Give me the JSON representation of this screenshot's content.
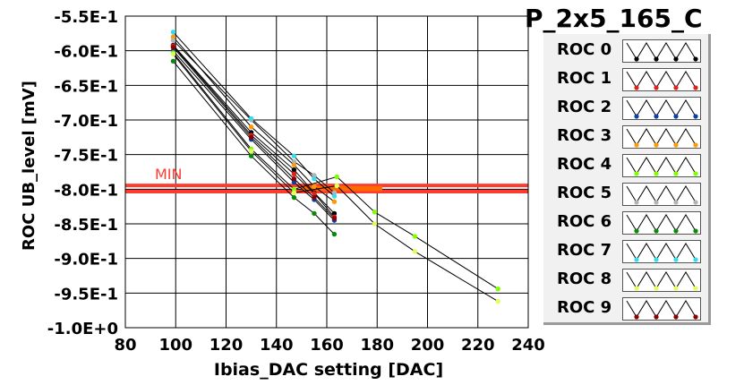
{
  "chart_data": {
    "type": "line",
    "title": "P_2x5_165_C",
    "xlabel": "Ibias_DAC setting [DAC]",
    "ylabel": "ROC UB_level [mV]",
    "xlim": [
      80,
      240
    ],
    "ylim": [
      -1.0,
      -0.55
    ],
    "x_ticks": [
      80,
      100,
      120,
      140,
      160,
      180,
      200,
      220,
      240
    ],
    "x_tick_labels": [
      "80",
      "100",
      "120",
      "140",
      "160",
      "180",
      "200",
      "220",
      "240"
    ],
    "y_ticks": [
      -0.55,
      -0.6,
      -0.65,
      -0.7,
      -0.75,
      -0.8,
      -0.85,
      -0.9,
      -0.95,
      -1.0
    ],
    "y_tick_labels": [
      "-5.5E-1",
      "-6.0E-1",
      "-6.5E-1",
      "-7.0E-1",
      "-7.5E-1",
      "-8.0E-1",
      "-8.5E-1",
      "-9.0E-1",
      "-9.5E-1",
      "-1.0E+0"
    ],
    "grid": true,
    "legend_position": "right",
    "annotation": {
      "text": "MIN",
      "color": "#ff3b30"
    },
    "reference_lines": [
      {
        "y": -0.7945,
        "color": "#ff3b30",
        "x_range": [
          80,
          240
        ]
      },
      {
        "y": -0.8035,
        "color": "#ff3b30",
        "x_range": [
          80,
          240
        ]
      },
      {
        "y": -0.798,
        "color": "#ff6a00",
        "x_range": [
          150,
          182
        ]
      },
      {
        "y": -0.8,
        "color": "#ff6a00",
        "x_range": [
          150,
          182
        ]
      }
    ],
    "series": [
      {
        "name": "ROC 0",
        "color": "#000000",
        "x": [
          99,
          130,
          147,
          155,
          163
        ],
        "y": [
          -0.592,
          -0.718,
          -0.772,
          -0.805,
          -0.835
        ]
      },
      {
        "name": "ROC 1",
        "color": "#e0201a",
        "x": [
          99,
          130,
          147,
          155,
          163
        ],
        "y": [
          -0.593,
          -0.722,
          -0.778,
          -0.806,
          -0.84
        ]
      },
      {
        "name": "ROC 2",
        "color": "#0b3fa8",
        "x": [
          99,
          130,
          147,
          155,
          163
        ],
        "y": [
          -0.6,
          -0.728,
          -0.79,
          -0.815,
          -0.845
        ]
      },
      {
        "name": "ROC 3",
        "color": "#ff9a00",
        "x": [
          99,
          130,
          147,
          155,
          163
        ],
        "y": [
          -0.58,
          -0.71,
          -0.765,
          -0.796,
          -0.818
        ]
      },
      {
        "name": "ROC 4",
        "color": "#7fff00",
        "x": [
          99,
          130,
          147,
          164,
          179,
          195,
          228
        ],
        "y": [
          -0.603,
          -0.742,
          -0.8,
          -0.782,
          -0.833,
          -0.868,
          -0.944
        ]
      },
      {
        "name": "ROC 5",
        "color": "#b3b3b3",
        "x": [
          99,
          130,
          147,
          155,
          163
        ],
        "y": [
          -0.585,
          -0.7,
          -0.76,
          -0.78,
          -0.805
        ]
      },
      {
        "name": "ROC 6",
        "color": "#0a8a0a",
        "x": [
          99,
          130,
          147,
          155,
          163
        ],
        "y": [
          -0.615,
          -0.752,
          -0.812,
          -0.835,
          -0.865
        ]
      },
      {
        "name": "ROC 7",
        "color": "#33ddee",
        "x": [
          99,
          130,
          147,
          155,
          163
        ],
        "y": [
          -0.573,
          -0.698,
          -0.752,
          -0.785,
          -0.81
        ]
      },
      {
        "name": "ROC 8",
        "color": "#dfff5a",
        "x": [
          99,
          130,
          147,
          164,
          179,
          195,
          228
        ],
        "y": [
          -0.605,
          -0.745,
          -0.805,
          -0.795,
          -0.85,
          -0.89,
          -0.962
        ]
      },
      {
        "name": "ROC 9",
        "color": "#8a0000",
        "x": [
          99,
          130,
          147,
          155,
          163
        ],
        "y": [
          -0.595,
          -0.725,
          -0.785,
          -0.812,
          -0.842
        ]
      }
    ]
  }
}
